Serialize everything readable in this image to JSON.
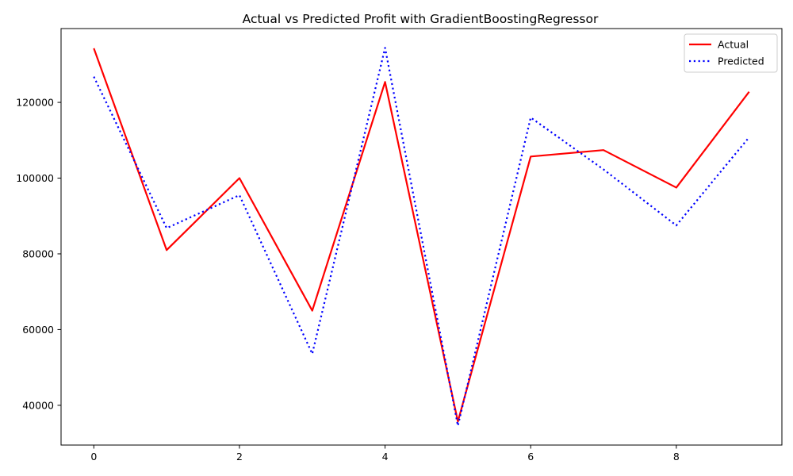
{
  "chart_data": {
    "type": "line",
    "title": "Actual vs Predicted Profit with GradientBoostingRegressor",
    "xlabel": "",
    "ylabel": "",
    "x": [
      0,
      1,
      2,
      3,
      4,
      5,
      6,
      7,
      8,
      9
    ],
    "xlim": [
      -0.45,
      9.45
    ],
    "ylim": [
      29500,
      139500
    ],
    "xticks": [
      0,
      2,
      4,
      6,
      8
    ],
    "yticks": [
      40000,
      60000,
      80000,
      100000,
      120000
    ],
    "grid": false,
    "legend_position": "top-right",
    "series": [
      {
        "name": "Actual",
        "color": "#ff0000",
        "style": "solid",
        "values": [
          134300,
          81000,
          100000,
          65000,
          125400,
          35700,
          105700,
          107400,
          97500,
          122800
        ]
      },
      {
        "name": "Predicted",
        "color": "#0000ff",
        "style": "dotted",
        "values": [
          126800,
          86800,
          95500,
          53600,
          134400,
          34600,
          116000,
          102300,
          87500,
          110800
        ]
      }
    ]
  }
}
